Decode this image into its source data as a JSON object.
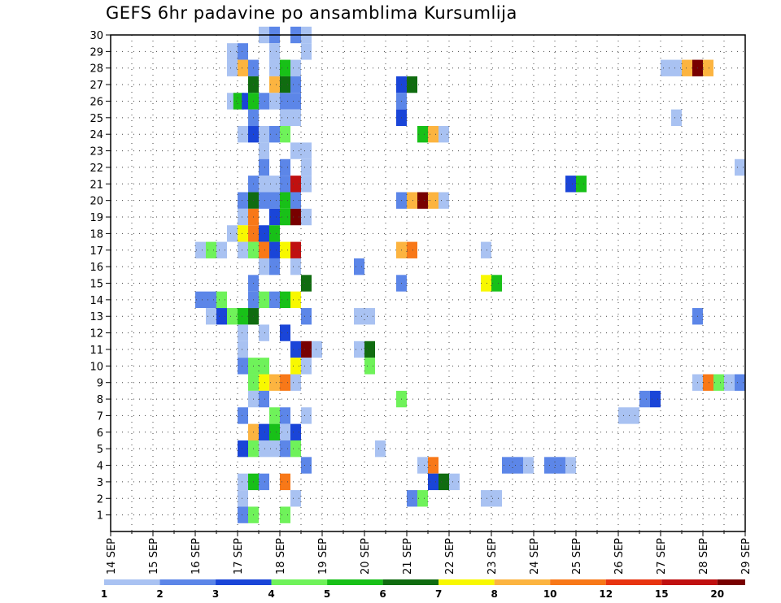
{
  "chart_data": {
    "type": "heatmap",
    "title": "GEFS 6hr padavine po ansamblima Kursumlija",
    "x_ticks": [
      "14 SEP",
      "15 SEP",
      "16 SEP",
      "17 SEP",
      "18 SEP",
      "19 SEP",
      "20 SEP",
      "21 SEP",
      "22 SEP",
      "23 SEP",
      "24 SEP",
      "25 SEP",
      "26 SEP",
      "27 SEP",
      "28 SEP",
      "29 SEP"
    ],
    "x_range_days": [
      14,
      29
    ],
    "y_ticks": [
      "1",
      "2",
      "3",
      "4",
      "5",
      "6",
      "7",
      "8",
      "9",
      "10",
      "11",
      "12",
      "13",
      "14",
      "15",
      "16",
      "17",
      "18",
      "19",
      "20",
      "21",
      "22",
      "23",
      "24",
      "25",
      "26",
      "27",
      "28",
      "29",
      "30"
    ],
    "y_range": [
      0,
      30
    ],
    "grid": true,
    "colorbar": {
      "labels": [
        "1",
        "2",
        "3",
        "4",
        "5",
        "6",
        "7",
        "8",
        "10",
        "12",
        "15",
        "20"
      ],
      "colors": [
        "#a9c2f2",
        "#5c86e8",
        "#1a45d8",
        "#6ff25a",
        "#18c018",
        "#106c10",
        "#f8f800",
        "#fcb440",
        "#f87818",
        "#e83410",
        "#c01010",
        "#780000"
      ]
    },
    "cell_width_days": 0.25,
    "cells": [
      {
        "m": 30,
        "d": 17.5,
        "v": 1
      },
      {
        "m": 30,
        "d": 17.75,
        "v": 2
      },
      {
        "m": 30,
        "d": 18.25,
        "v": 2
      },
      {
        "m": 30,
        "d": 18.5,
        "v": 1
      },
      {
        "m": 29,
        "d": 16.75,
        "v": 1
      },
      {
        "m": 29,
        "d": 17,
        "v": 2
      },
      {
        "m": 29,
        "d": 17.75,
        "v": 1
      },
      {
        "m": 29,
        "d": 18.5,
        "v": 1
      },
      {
        "m": 28,
        "d": 16.75,
        "v": 1
      },
      {
        "m": 28,
        "d": 17,
        "v": 8
      },
      {
        "m": 28,
        "d": 17.25,
        "v": 2
      },
      {
        "m": 28,
        "d": 17.75,
        "v": 1
      },
      {
        "m": 28,
        "d": 18,
        "v": 5
      },
      {
        "m": 28,
        "d": 18.25,
        "v": 1
      },
      {
        "m": 28,
        "d": 27,
        "v": 1
      },
      {
        "m": 28,
        "d": 27.25,
        "v": 1
      },
      {
        "m": 28,
        "d": 27.5,
        "v": 8
      },
      {
        "m": 28,
        "d": 27.75,
        "v": 20
      },
      {
        "m": 28,
        "d": 28,
        "v": 8
      },
      {
        "m": 27,
        "d": 17.25,
        "v": 6
      },
      {
        "m": 27,
        "d": 17.75,
        "v": 8
      },
      {
        "m": 27,
        "d": 18,
        "v": 6
      },
      {
        "m": 27,
        "d": 18.25,
        "v": 2
      },
      {
        "m": 27,
        "d": 20.75,
        "v": 3
      },
      {
        "m": 27,
        "d": 21,
        "v": 6
      },
      {
        "m": 26,
        "d": 16.75,
        "v": 1
      },
      {
        "m": 26,
        "d": 16.9,
        "v": 5
      },
      {
        "m": 26,
        "d": 17.1,
        "v": 3
      },
      {
        "m": 26,
        "d": 17.25,
        "v": 5
      },
      {
        "m": 26,
        "d": 17.5,
        "v": 2
      },
      {
        "m": 26,
        "d": 17.75,
        "v": 1
      },
      {
        "m": 26,
        "d": 18,
        "v": 2
      },
      {
        "m": 26,
        "d": 18.25,
        "v": 2
      },
      {
        "m": 26,
        "d": 20.75,
        "v": 2
      },
      {
        "m": 25,
        "d": 17.25,
        "v": 2
      },
      {
        "m": 25,
        "d": 18,
        "v": 1
      },
      {
        "m": 25,
        "d": 18.25,
        "v": 1
      },
      {
        "m": 25,
        "d": 20.75,
        "v": 3
      },
      {
        "m": 25,
        "d": 27.25,
        "v": 1
      },
      {
        "m": 24,
        "d": 17,
        "v": 1
      },
      {
        "m": 24,
        "d": 17.25,
        "v": 3
      },
      {
        "m": 24,
        "d": 17.5,
        "v": 1
      },
      {
        "m": 24,
        "d": 17.75,
        "v": 2
      },
      {
        "m": 24,
        "d": 18,
        "v": 4
      },
      {
        "m": 24,
        "d": 21.25,
        "v": 5
      },
      {
        "m": 24,
        "d": 21.5,
        "v": 8
      },
      {
        "m": 24,
        "d": 21.75,
        "v": 1
      },
      {
        "m": 23,
        "d": 17.5,
        "v": 1
      },
      {
        "m": 23,
        "d": 18.25,
        "v": 1
      },
      {
        "m": 23,
        "d": 18.5,
        "v": 1
      },
      {
        "m": 22,
        "d": 17.5,
        "v": 2
      },
      {
        "m": 22,
        "d": 18,
        "v": 2
      },
      {
        "m": 22,
        "d": 18.5,
        "v": 1
      },
      {
        "m": 22,
        "d": 28.75,
        "v": 1
      },
      {
        "m": 21,
        "d": 17.25,
        "v": 2
      },
      {
        "m": 21,
        "d": 17.5,
        "v": 1
      },
      {
        "m": 21,
        "d": 17.75,
        "v": 1
      },
      {
        "m": 21,
        "d": 18,
        "v": 2
      },
      {
        "m": 21,
        "d": 18.25,
        "v": 15
      },
      {
        "m": 21,
        "d": 18.5,
        "v": 1
      },
      {
        "m": 21,
        "d": 24.75,
        "v": 3
      },
      {
        "m": 21,
        "d": 25,
        "v": 5
      },
      {
        "m": 20,
        "d": 17,
        "v": 2
      },
      {
        "m": 20,
        "d": 17.25,
        "v": 6
      },
      {
        "m": 20,
        "d": 17.5,
        "v": 2
      },
      {
        "m": 20,
        "d": 17.75,
        "v": 2
      },
      {
        "m": 20,
        "d": 18,
        "v": 5
      },
      {
        "m": 20,
        "d": 18.25,
        "v": 2
      },
      {
        "m": 20,
        "d": 20.75,
        "v": 2
      },
      {
        "m": 20,
        "d": 21,
        "v": 8
      },
      {
        "m": 20,
        "d": 21.25,
        "v": 20
      },
      {
        "m": 20,
        "d": 21.5,
        "v": 8
      },
      {
        "m": 20,
        "d": 21.75,
        "v": 1
      },
      {
        "m": 19,
        "d": 17,
        "v": 1
      },
      {
        "m": 19,
        "d": 17.25,
        "v": 10
      },
      {
        "m": 19,
        "d": 17.75,
        "v": 3
      },
      {
        "m": 19,
        "d": 18,
        "v": 5
      },
      {
        "m": 19,
        "d": 18.25,
        "v": 20
      },
      {
        "m": 19,
        "d": 18.5,
        "v": 1
      },
      {
        "m": 18,
        "d": 16.75,
        "v": 1
      },
      {
        "m": 18,
        "d": 17,
        "v": 7
      },
      {
        "m": 18,
        "d": 17.25,
        "v": 10
      },
      {
        "m": 18,
        "d": 17.5,
        "v": 3
      },
      {
        "m": 18,
        "d": 17.75,
        "v": 5
      },
      {
        "m": 17,
        "d": 16,
        "v": 1
      },
      {
        "m": 17,
        "d": 16.25,
        "v": 4
      },
      {
        "m": 17,
        "d": 16.5,
        "v": 1
      },
      {
        "m": 17,
        "d": 17,
        "v": 1
      },
      {
        "m": 17,
        "d": 17.25,
        "v": 4
      },
      {
        "m": 17,
        "d": 17.5,
        "v": 10
      },
      {
        "m": 17,
        "d": 17.75,
        "v": 3
      },
      {
        "m": 17,
        "d": 18,
        "v": 7
      },
      {
        "m": 17,
        "d": 18.25,
        "v": 15
      },
      {
        "m": 17,
        "d": 20.75,
        "v": 8
      },
      {
        "m": 17,
        "d": 21,
        "v": 10
      },
      {
        "m": 17,
        "d": 22.75,
        "v": 1
      },
      {
        "m": 16,
        "d": 17.5,
        "v": 1
      },
      {
        "m": 16,
        "d": 17.75,
        "v": 2
      },
      {
        "m": 16,
        "d": 18.25,
        "v": 1
      },
      {
        "m": 16,
        "d": 19.75,
        "v": 2
      },
      {
        "m": 15,
        "d": 17.25,
        "v": 2
      },
      {
        "m": 15,
        "d": 18.5,
        "v": 6
      },
      {
        "m": 15,
        "d": 20.75,
        "v": 2
      },
      {
        "m": 15,
        "d": 22.75,
        "v": 7
      },
      {
        "m": 15,
        "d": 23,
        "v": 5
      },
      {
        "m": 14,
        "d": 16,
        "v": 2
      },
      {
        "m": 14,
        "d": 16.25,
        "v": 2
      },
      {
        "m": 14,
        "d": 16.5,
        "v": 4
      },
      {
        "m": 14,
        "d": 17.25,
        "v": 2
      },
      {
        "m": 14,
        "d": 17.5,
        "v": 4
      },
      {
        "m": 14,
        "d": 17.75,
        "v": 2
      },
      {
        "m": 14,
        "d": 18,
        "v": 5
      },
      {
        "m": 14,
        "d": 18.25,
        "v": 7
      },
      {
        "m": 13,
        "d": 16.25,
        "v": 1
      },
      {
        "m": 13,
        "d": 16.5,
        "v": 3
      },
      {
        "m": 13,
        "d": 16.75,
        "v": 4
      },
      {
        "m": 13,
        "d": 17,
        "v": 5
      },
      {
        "m": 13,
        "d": 17.25,
        "v": 6
      },
      {
        "m": 13,
        "d": 18.5,
        "v": 2
      },
      {
        "m": 13,
        "d": 19.75,
        "v": 1
      },
      {
        "m": 13,
        "d": 20,
        "v": 1
      },
      {
        "m": 13,
        "d": 27.75,
        "v": 2
      },
      {
        "m": 12,
        "d": 17,
        "v": 1
      },
      {
        "m": 12,
        "d": 17.5,
        "v": 1
      },
      {
        "m": 12,
        "d": 18,
        "v": 3
      },
      {
        "m": 11,
        "d": 17,
        "v": 1
      },
      {
        "m": 11,
        "d": 18.25,
        "v": 3
      },
      {
        "m": 11,
        "d": 18.5,
        "v": 20
      },
      {
        "m": 11,
        "d": 18.75,
        "v": 1
      },
      {
        "m": 11,
        "d": 19.75,
        "v": 1
      },
      {
        "m": 11,
        "d": 20,
        "v": 6
      },
      {
        "m": 10,
        "d": 17,
        "v": 2
      },
      {
        "m": 10,
        "d": 17.25,
        "v": 4
      },
      {
        "m": 10,
        "d": 17.5,
        "v": 4
      },
      {
        "m": 10,
        "d": 18.25,
        "v": 7
      },
      {
        "m": 10,
        "d": 18.5,
        "v": 1
      },
      {
        "m": 10,
        "d": 20,
        "v": 4
      },
      {
        "m": 9,
        "d": 17.25,
        "v": 4
      },
      {
        "m": 9,
        "d": 17.5,
        "v": 7
      },
      {
        "m": 9,
        "d": 17.75,
        "v": 8
      },
      {
        "m": 9,
        "d": 18,
        "v": 10
      },
      {
        "m": 9,
        "d": 18.25,
        "v": 1
      },
      {
        "m": 9,
        "d": 27.75,
        "v": 1
      },
      {
        "m": 9,
        "d": 28,
        "v": 10
      },
      {
        "m": 9,
        "d": 28.25,
        "v": 4
      },
      {
        "m": 9,
        "d": 28.5,
        "v": 1
      },
      {
        "m": 9,
        "d": 28.75,
        "v": 2
      },
      {
        "m": 8,
        "d": 17.25,
        "v": 1
      },
      {
        "m": 8,
        "d": 17.5,
        "v": 2
      },
      {
        "m": 8,
        "d": 20.75,
        "v": 4
      },
      {
        "m": 8,
        "d": 26.5,
        "v": 2
      },
      {
        "m": 8,
        "d": 26.75,
        "v": 3
      },
      {
        "m": 7,
        "d": 17,
        "v": 2
      },
      {
        "m": 7,
        "d": 17.75,
        "v": 4
      },
      {
        "m": 7,
        "d": 18,
        "v": 2
      },
      {
        "m": 7,
        "d": 18.5,
        "v": 1
      },
      {
        "m": 7,
        "d": 26,
        "v": 1
      },
      {
        "m": 7,
        "d": 26.25,
        "v": 1
      },
      {
        "m": 6,
        "d": 17.25,
        "v": 8
      },
      {
        "m": 6,
        "d": 17.5,
        "v": 3
      },
      {
        "m": 6,
        "d": 17.75,
        "v": 5
      },
      {
        "m": 6,
        "d": 18,
        "v": 1
      },
      {
        "m": 6,
        "d": 18.25,
        "v": 3
      },
      {
        "m": 5,
        "d": 17,
        "v": 3
      },
      {
        "m": 5,
        "d": 17.25,
        "v": 4
      },
      {
        "m": 5,
        "d": 17.5,
        "v": 1
      },
      {
        "m": 5,
        "d": 17.75,
        "v": 1
      },
      {
        "m": 5,
        "d": 18,
        "v": 2
      },
      {
        "m": 5,
        "d": 18.25,
        "v": 4
      },
      {
        "m": 5,
        "d": 20.25,
        "v": 1
      },
      {
        "m": 4,
        "d": 18.5,
        "v": 2
      },
      {
        "m": 4,
        "d": 21.25,
        "v": 1
      },
      {
        "m": 4,
        "d": 21.5,
        "v": 10
      },
      {
        "m": 4,
        "d": 23.25,
        "v": 2
      },
      {
        "m": 4,
        "d": 23.5,
        "v": 2
      },
      {
        "m": 4,
        "d": 23.75,
        "v": 1
      },
      {
        "m": 4,
        "d": 24.25,
        "v": 2
      },
      {
        "m": 4,
        "d": 24.5,
        "v": 2
      },
      {
        "m": 4,
        "d": 24.75,
        "v": 1
      },
      {
        "m": 3,
        "d": 17,
        "v": 1
      },
      {
        "m": 3,
        "d": 17.25,
        "v": 5
      },
      {
        "m": 3,
        "d": 17.5,
        "v": 2
      },
      {
        "m": 3,
        "d": 18,
        "v": 10
      },
      {
        "m": 3,
        "d": 21.5,
        "v": 3
      },
      {
        "m": 3,
        "d": 21.75,
        "v": 6
      },
      {
        "m": 3,
        "d": 22,
        "v": 1
      },
      {
        "m": 2,
        "d": 17,
        "v": 1
      },
      {
        "m": 2,
        "d": 18.25,
        "v": 1
      },
      {
        "m": 2,
        "d": 21,
        "v": 2
      },
      {
        "m": 2,
        "d": 21.25,
        "v": 4
      },
      {
        "m": 2,
        "d": 22.75,
        "v": 1
      },
      {
        "m": 2,
        "d": 23,
        "v": 1
      },
      {
        "m": 1,
        "d": 17,
        "v": 2
      },
      {
        "m": 1,
        "d": 17.25,
        "v": 4
      },
      {
        "m": 1,
        "d": 18,
        "v": 4
      }
    ]
  }
}
